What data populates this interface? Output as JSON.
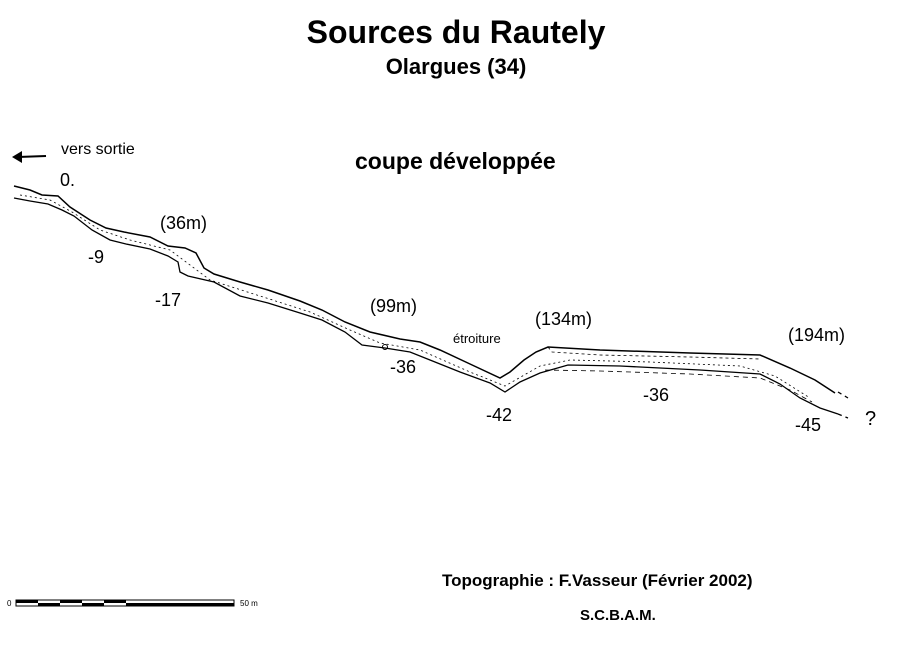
{
  "title": "Sources du Rautely",
  "subtitle": "Olargues (34)",
  "view": "coupe développée",
  "exit_label": "vers sortie",
  "icons": {
    "exit_arrow": "arrow-left-icon"
  },
  "start_depth": "0.",
  "depths": [
    "-9",
    "-17",
    "-36",
    "-42",
    "-36",
    "-45"
  ],
  "distances": [
    "(36m)",
    "(99m)",
    "(134m)",
    "(194m)"
  ],
  "narrowing": "étroiture",
  "unknown_continuation": "?",
  "scale": {
    "start": "0",
    "end": "50 m"
  },
  "credit": "Topographie : F.Vasseur (Février 2002)",
  "club": "S.C.B.A.M."
}
